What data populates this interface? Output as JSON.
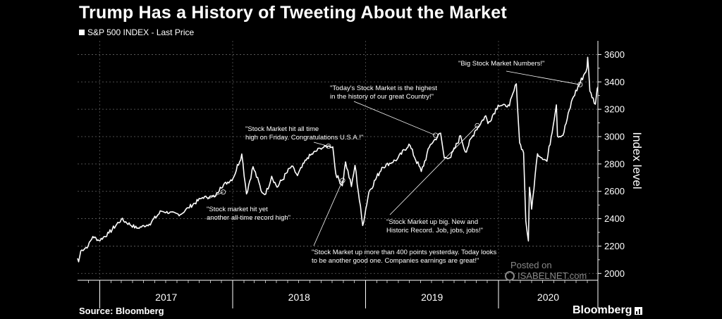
{
  "header": {
    "title": "Trump Has a History of Tweeting About the Market",
    "legend_label": "S&P 500 INDEX - Last Price"
  },
  "footer": {
    "source": "Source: Bloomberg",
    "brand": "Bloomberg"
  },
  "watermark": {
    "posted": "Posted on",
    "site": "ISABELNET.com"
  },
  "chart_data": {
    "type": "line",
    "ylabel": "Index level",
    "ylim": [
      1950,
      3700
    ],
    "yticks": [
      2000,
      2200,
      2400,
      2600,
      2800,
      3000,
      3200,
      3400,
      3600
    ],
    "xlim": [
      "2016-11-01",
      "2020-09-30"
    ],
    "xtick_labels": [
      {
        "label": "2017",
        "year": 2017
      },
      {
        "label": "2018",
        "year": 2018
      },
      {
        "label": "2019",
        "year": 2019
      },
      {
        "label": "2020",
        "year": 2020
      }
    ],
    "color": "#ffffff",
    "series": [
      {
        "name": "S&P 500 INDEX - Last Price",
        "points": [
          [
            "2016-11-01",
            2110
          ],
          [
            "2016-11-04",
            2085
          ],
          [
            "2016-11-10",
            2165
          ],
          [
            "2016-11-30",
            2200
          ],
          [
            "2016-12-13",
            2270
          ],
          [
            "2016-12-30",
            2240
          ],
          [
            "2017-01-26",
            2295
          ],
          [
            "2017-03-01",
            2395
          ],
          [
            "2017-04-13",
            2330
          ],
          [
            "2017-05-17",
            2360
          ],
          [
            "2017-06-19",
            2455
          ],
          [
            "2017-08-10",
            2430
          ],
          [
            "2017-09-01",
            2480
          ],
          [
            "2017-10-10",
            2555
          ],
          [
            "2017-11-15",
            2565
          ],
          [
            "2017-11-28",
            2630
          ],
          [
            "2018-01-02",
            2695
          ],
          [
            "2018-01-26",
            2873
          ],
          [
            "2018-02-08",
            2581
          ],
          [
            "2018-02-26",
            2780
          ],
          [
            "2018-03-23",
            2590
          ],
          [
            "2018-04-02",
            2581
          ],
          [
            "2018-04-18",
            2710
          ],
          [
            "2018-05-03",
            2630
          ],
          [
            "2018-06-12",
            2785
          ],
          [
            "2018-06-28",
            2715
          ],
          [
            "2018-07-25",
            2845
          ],
          [
            "2018-08-29",
            2915
          ],
          [
            "2018-09-20",
            2930
          ],
          [
            "2018-10-03",
            2925
          ],
          [
            "2018-10-11",
            2730
          ],
          [
            "2018-10-29",
            2640
          ],
          [
            "2018-11-07",
            2815
          ],
          [
            "2018-11-23",
            2635
          ],
          [
            "2018-12-03",
            2790
          ],
          [
            "2018-12-24",
            2350
          ],
          [
            "2019-01-10",
            2595
          ],
          [
            "2019-02-15",
            2775
          ],
          [
            "2019-03-29",
            2835
          ],
          [
            "2019-04-30",
            2945
          ],
          [
            "2019-06-03",
            2745
          ],
          [
            "2019-06-28",
            2942
          ],
          [
            "2019-07-26",
            3025
          ],
          [
            "2019-08-05",
            2845
          ],
          [
            "2019-08-23",
            2848
          ],
          [
            "2019-09-19",
            3006
          ],
          [
            "2019-10-02",
            2888
          ],
          [
            "2019-10-28",
            3039
          ],
          [
            "2019-11-27",
            3153
          ],
          [
            "2019-12-03",
            3095
          ],
          [
            "2019-12-31",
            3230
          ],
          [
            "2020-01-31",
            3225
          ],
          [
            "2020-02-19",
            3386
          ],
          [
            "2020-02-28",
            2954
          ],
          [
            "2020-03-10",
            2882
          ],
          [
            "2020-03-16",
            2386
          ],
          [
            "2020-03-23",
            2237
          ],
          [
            "2020-03-26",
            2630
          ],
          [
            "2020-04-01",
            2470
          ],
          [
            "2020-04-17",
            2875
          ],
          [
            "2020-05-13",
            2820
          ],
          [
            "2020-06-08",
            3232
          ],
          [
            "2020-06-11",
            3002
          ],
          [
            "2020-06-26",
            3009
          ],
          [
            "2020-07-22",
            3276
          ],
          [
            "2020-08-31",
            3500
          ],
          [
            "2020-09-02",
            3580
          ],
          [
            "2020-09-08",
            3332
          ],
          [
            "2020-09-23",
            3237
          ],
          [
            "2020-09-28",
            3351
          ],
          [
            "2020-09-30",
            3363
          ]
        ]
      }
    ],
    "annotations": [
      {
        "text": [
          "\"Stock market hit yet",
          "another all-time record high\""
        ],
        "target": [
          "2017-12-06",
          2595
        ]
      },
      {
        "text": [
          "\"Stock Market hit all time",
          "high on Friday. Congratulations U.S.A.!\""
        ],
        "target": [
          "2018-09-21",
          2930
        ]
      },
      {
        "text": [
          "\"Stock Market up more than 400 points yesterday. Today looks",
          "to be another good one. Companies earnings are great!\""
        ],
        "target": [
          "2018-10-30",
          2680
        ]
      },
      {
        "text": [
          "\"Today's Stock Market is the highest",
          "in the history of our great Country!\""
        ],
        "target": [
          "2019-07-12",
          3010
        ]
      },
      {
        "text": [
          "\"Stock Market up big. New and",
          "Historic Record. Job, jobs, jobs!\""
        ],
        "target": [
          "2019-11-04",
          3080
        ]
      },
      {
        "text": [
          "\"Big Stock Market Numbers!\""
        ],
        "target": [
          "2020-08-12",
          3380
        ]
      }
    ]
  }
}
